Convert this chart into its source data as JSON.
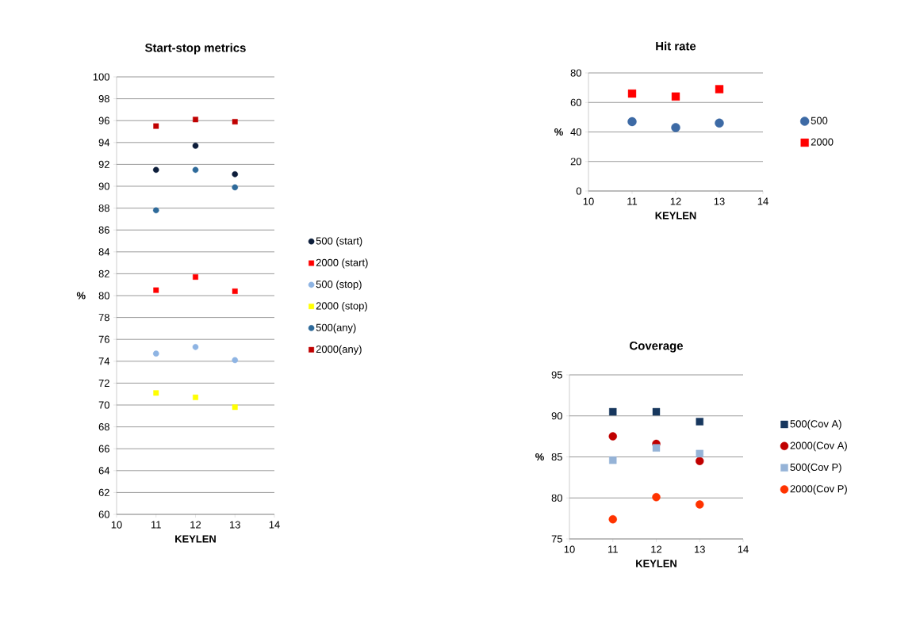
{
  "chart_data": [
    {
      "type": "scatter",
      "title": "Start-stop metrics",
      "xlabel": "KEYLEN",
      "ylabel": "%",
      "x": [
        11,
        12,
        13
      ],
      "xlim": [
        10,
        14
      ],
      "xticks": [
        10,
        11,
        12,
        13,
        14
      ],
      "ylim": [
        60,
        100
      ],
      "yticks": [
        60,
        62,
        64,
        66,
        68,
        70,
        72,
        74,
        76,
        78,
        80,
        82,
        84,
        86,
        88,
        90,
        92,
        94,
        96,
        98,
        100
      ],
      "grid": "y",
      "legend": "right",
      "series": [
        {
          "name": "500 (start)",
          "color": "#0d1e3b",
          "marker": "circle",
          "values": [
            91.5,
            93.7,
            91.1
          ]
        },
        {
          "name": "2000 (start)",
          "color": "#ff0000",
          "marker": "square",
          "values": [
            80.5,
            81.7,
            80.4
          ]
        },
        {
          "name": "500 (stop)",
          "color": "#8eb4e3",
          "marker": "circle",
          "values": [
            74.7,
            75.3,
            74.1
          ]
        },
        {
          "name": "2000 (stop)",
          "color": "#ffff00",
          "marker": "square",
          "values": [
            71.1,
            70.7,
            69.8
          ]
        },
        {
          "name": "500(any)",
          "color": "#2e6a9a",
          "marker": "circle",
          "values": [
            87.8,
            91.5,
            89.9
          ]
        },
        {
          "name": "2000(any)",
          "color": "#c00000",
          "marker": "square",
          "values": [
            95.5,
            96.1,
            95.9
          ]
        }
      ]
    },
    {
      "type": "scatter",
      "title": "Hit rate",
      "xlabel": "KEYLEN",
      "ylabel": "%",
      "x": [
        11,
        12,
        13
      ],
      "xlim": [
        10,
        14
      ],
      "xticks": [
        10,
        11,
        12,
        13,
        14
      ],
      "ylim": [
        0,
        80
      ],
      "yticks": [
        0,
        20,
        40,
        60,
        80
      ],
      "grid": "y",
      "legend": "right",
      "series": [
        {
          "name": "500",
          "color": "#3d6aa5",
          "marker": "circle",
          "values": [
            47,
            43,
            46
          ]
        },
        {
          "name": "2000",
          "color": "#ff0000",
          "marker": "square",
          "values": [
            66,
            64,
            69
          ]
        }
      ]
    },
    {
      "type": "scatter",
      "title": "Coverage",
      "xlabel": "KEYLEN",
      "ylabel": "%",
      "x": [
        11,
        12,
        13
      ],
      "xlim": [
        10,
        14
      ],
      "xticks": [
        10,
        11,
        12,
        13,
        14
      ],
      "ylim": [
        75,
        95
      ],
      "yticks": [
        75,
        80,
        85,
        90,
        95
      ],
      "grid": "y",
      "legend": "right",
      "series": [
        {
          "name": "500(Cov A)",
          "color": "#17375e",
          "marker": "square",
          "values": [
            90.5,
            90.5,
            89.3
          ]
        },
        {
          "name": "2000(Cov A)",
          "color": "#c00000",
          "marker": "circle",
          "values": [
            87.5,
            86.6,
            84.5
          ]
        },
        {
          "name": "500(Cov P)",
          "color": "#95b3d7",
          "marker": "square",
          "values": [
            84.6,
            86.1,
            85.4
          ]
        },
        {
          "name": "2000(Cov P)",
          "color": "#ff3300",
          "marker": "circle",
          "values": [
            77.4,
            80.1,
            79.2
          ]
        }
      ]
    }
  ]
}
